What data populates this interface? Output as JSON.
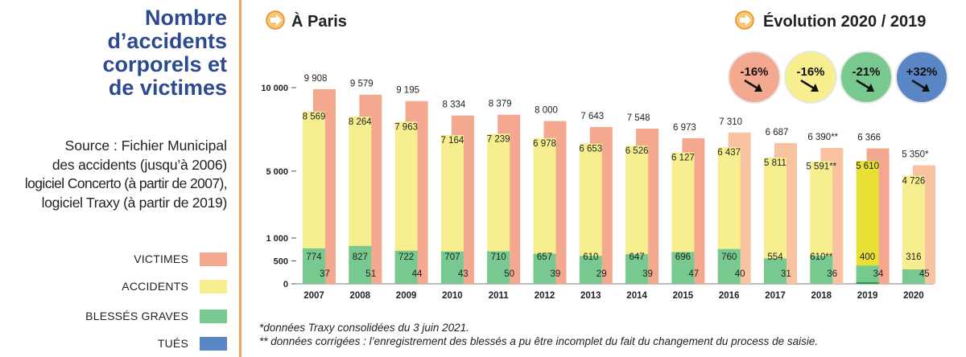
{
  "sidebar": {
    "title_lines": [
      "Nombre",
      "d’accidents",
      "corporels et",
      "de victimes"
    ],
    "source_lines": [
      "Source : Fichier Municipal",
      "des accidents (jusqu’à 2006)",
      "logiciel Concerto (à partir de 2007),",
      "logiciel Traxy (à partir de 2019)"
    ],
    "legend": [
      {
        "label": "VICTIMES",
        "color": "#f4a890"
      },
      {
        "label": "ACCIDENTS",
        "color": "#f7ef8f"
      },
      {
        "label": "BLESSÉS GRAVES",
        "color": "#78c98f"
      },
      {
        "label": "TUÉS",
        "color": "#5b86c6"
      }
    ]
  },
  "header": {
    "left_title": "À Paris",
    "right_title": "Évolution 2020 / 2019",
    "arrow_icon": "right-arrow-circle-icon"
  },
  "badges": [
    {
      "label": "-16%",
      "color": "#f4a890"
    },
    {
      "label": "-16%",
      "color": "#f7ef8f"
    },
    {
      "label": "-21%",
      "color": "#78c98f"
    },
    {
      "label": "+32%",
      "color": "#5b86c6"
    }
  ],
  "chart_data": {
    "type": "bar",
    "categories": [
      "2007",
      "2008",
      "2009",
      "2010",
      "2011",
      "2012",
      "2013",
      "2014",
      "2015",
      "2016",
      "2017",
      "2018",
      "2019",
      "2020"
    ],
    "y_ticks": [
      {
        "value": 0,
        "label": "0"
      },
      {
        "value": 500,
        "label": "500"
      },
      {
        "value": 1000,
        "label": "1 000"
      },
      {
        "value": 5000,
        "label": "5 000"
      },
      {
        "value": 10000,
        "label": "10 000"
      }
    ],
    "y_scale": "broken: 0–1000 expanded, 1000–10000 compressed",
    "series": [
      {
        "name": "VICTIMES",
        "values": [
          9908,
          9579,
          9195,
          8334,
          8379,
          8000,
          7643,
          7548,
          6973,
          7310,
          6687,
          6390,
          6366,
          5350
        ],
        "labels": [
          "9 908",
          "9 579",
          "9 195",
          "8 334",
          "8 379",
          "8 000",
          "7 643",
          "7 548",
          "6 973",
          "7 310",
          "6 687",
          "6 390**",
          "6 366",
          "5 350*"
        ]
      },
      {
        "name": "ACCIDENTS",
        "values": [
          8569,
          8264,
          7963,
          7164,
          7239,
          6978,
          6653,
          6526,
          6127,
          6437,
          5811,
          5591,
          5610,
          4726
        ],
        "labels": [
          "8 569",
          "8 264",
          "7 963",
          "7 164",
          "7 239",
          "6 978",
          "6 653",
          "6 526",
          "6 127",
          "6 437",
          "5 811",
          "5 591**",
          "5 610",
          "4 726"
        ]
      },
      {
        "name": "BLESSÉS GRAVES",
        "values": [
          774,
          827,
          722,
          707,
          710,
          657,
          610,
          647,
          696,
          760,
          554,
          610,
          400,
          316
        ],
        "labels": [
          "774",
          "827",
          "722",
          "707",
          "710",
          "657",
          "610",
          "647",
          "696",
          "760",
          "554",
          "610**",
          "400",
          "316"
        ]
      },
      {
        "name": "TUÉS",
        "values": [
          37,
          51,
          44,
          43,
          50,
          39,
          29,
          39,
          47,
          40,
          31,
          36,
          34,
          45
        ],
        "labels": [
          "37",
          "51",
          "44",
          "43",
          "50",
          "39",
          "29",
          "39",
          "47",
          "40",
          "31",
          "36",
          "34",
          "45"
        ]
      }
    ],
    "highlight_category": "2019",
    "highlight_colors": {
      "accidents": "#e8e034",
      "blesses": "#1f9b4a"
    }
  },
  "footnotes": [
    "*données Traxy consolidées du 3 juin 2021.",
    "** données corrigées : l’enregistrement des blessés a pu être incomplet du fait du changement du process de saisie."
  ]
}
